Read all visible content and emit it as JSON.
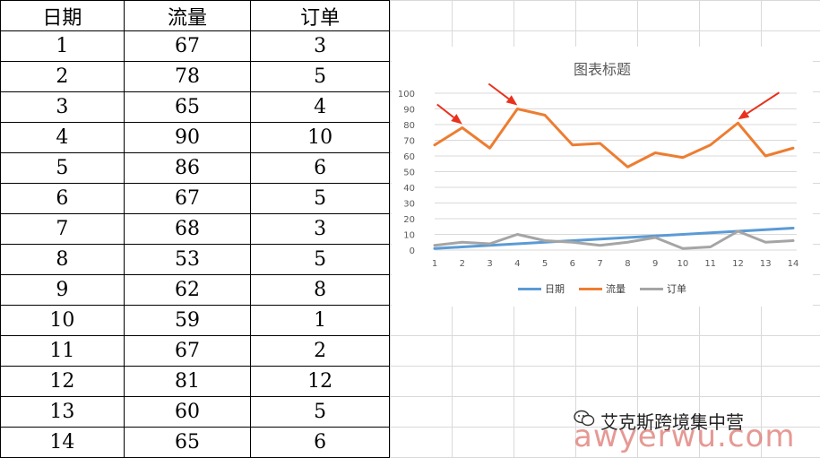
{
  "table": {
    "headers": [
      "日期",
      "流量",
      "订单"
    ],
    "rows": [
      [
        "1",
        "67",
        "3"
      ],
      [
        "2",
        "78",
        "5"
      ],
      [
        "3",
        "65",
        "4"
      ],
      [
        "4",
        "90",
        "10"
      ],
      [
        "5",
        "86",
        "6"
      ],
      [
        "6",
        "67",
        "5"
      ],
      [
        "7",
        "68",
        "3"
      ],
      [
        "8",
        "53",
        "5"
      ],
      [
        "9",
        "62",
        "8"
      ],
      [
        "10",
        "59",
        "1"
      ],
      [
        "11",
        "67",
        "2"
      ],
      [
        "12",
        "81",
        "12"
      ],
      [
        "13",
        "60",
        "5"
      ],
      [
        "14",
        "65",
        "6"
      ]
    ]
  },
  "chart_data": {
    "type": "line",
    "title": "图表标题",
    "x": [
      1,
      2,
      3,
      4,
      5,
      6,
      7,
      8,
      9,
      10,
      11,
      12,
      13,
      14
    ],
    "ylim": [
      0,
      100
    ],
    "yticks": [
      0,
      10,
      20,
      30,
      40,
      50,
      60,
      70,
      80,
      90,
      100
    ],
    "grid": true,
    "legend": "bottom",
    "series": [
      {
        "name": "日期",
        "color": "#5b9bd5",
        "values": [
          1,
          2,
          3,
          4,
          5,
          6,
          7,
          8,
          9,
          10,
          11,
          12,
          13,
          14
        ]
      },
      {
        "name": "流量",
        "color": "#ed7d31",
        "values": [
          67,
          78,
          65,
          90,
          86,
          67,
          68,
          53,
          62,
          59,
          67,
          81,
          60,
          65
        ]
      },
      {
        "name": "订单",
        "color": "#a5a5a5",
        "values": [
          3,
          5,
          4,
          10,
          6,
          5,
          3,
          5,
          8,
          1,
          2,
          12,
          5,
          6
        ]
      }
    ],
    "annotations": [
      {
        "type": "arrow",
        "target_x": 2,
        "color": "#e8321e"
      },
      {
        "type": "arrow",
        "target_x": 4,
        "color": "#e8321e"
      },
      {
        "type": "arrow",
        "target_x": 12,
        "color": "#e8321e"
      }
    ]
  },
  "watermark": {
    "line1": "艾克斯跨境集中营",
    "line2": "awyerwu.com",
    "icon": "wechat-icon"
  }
}
